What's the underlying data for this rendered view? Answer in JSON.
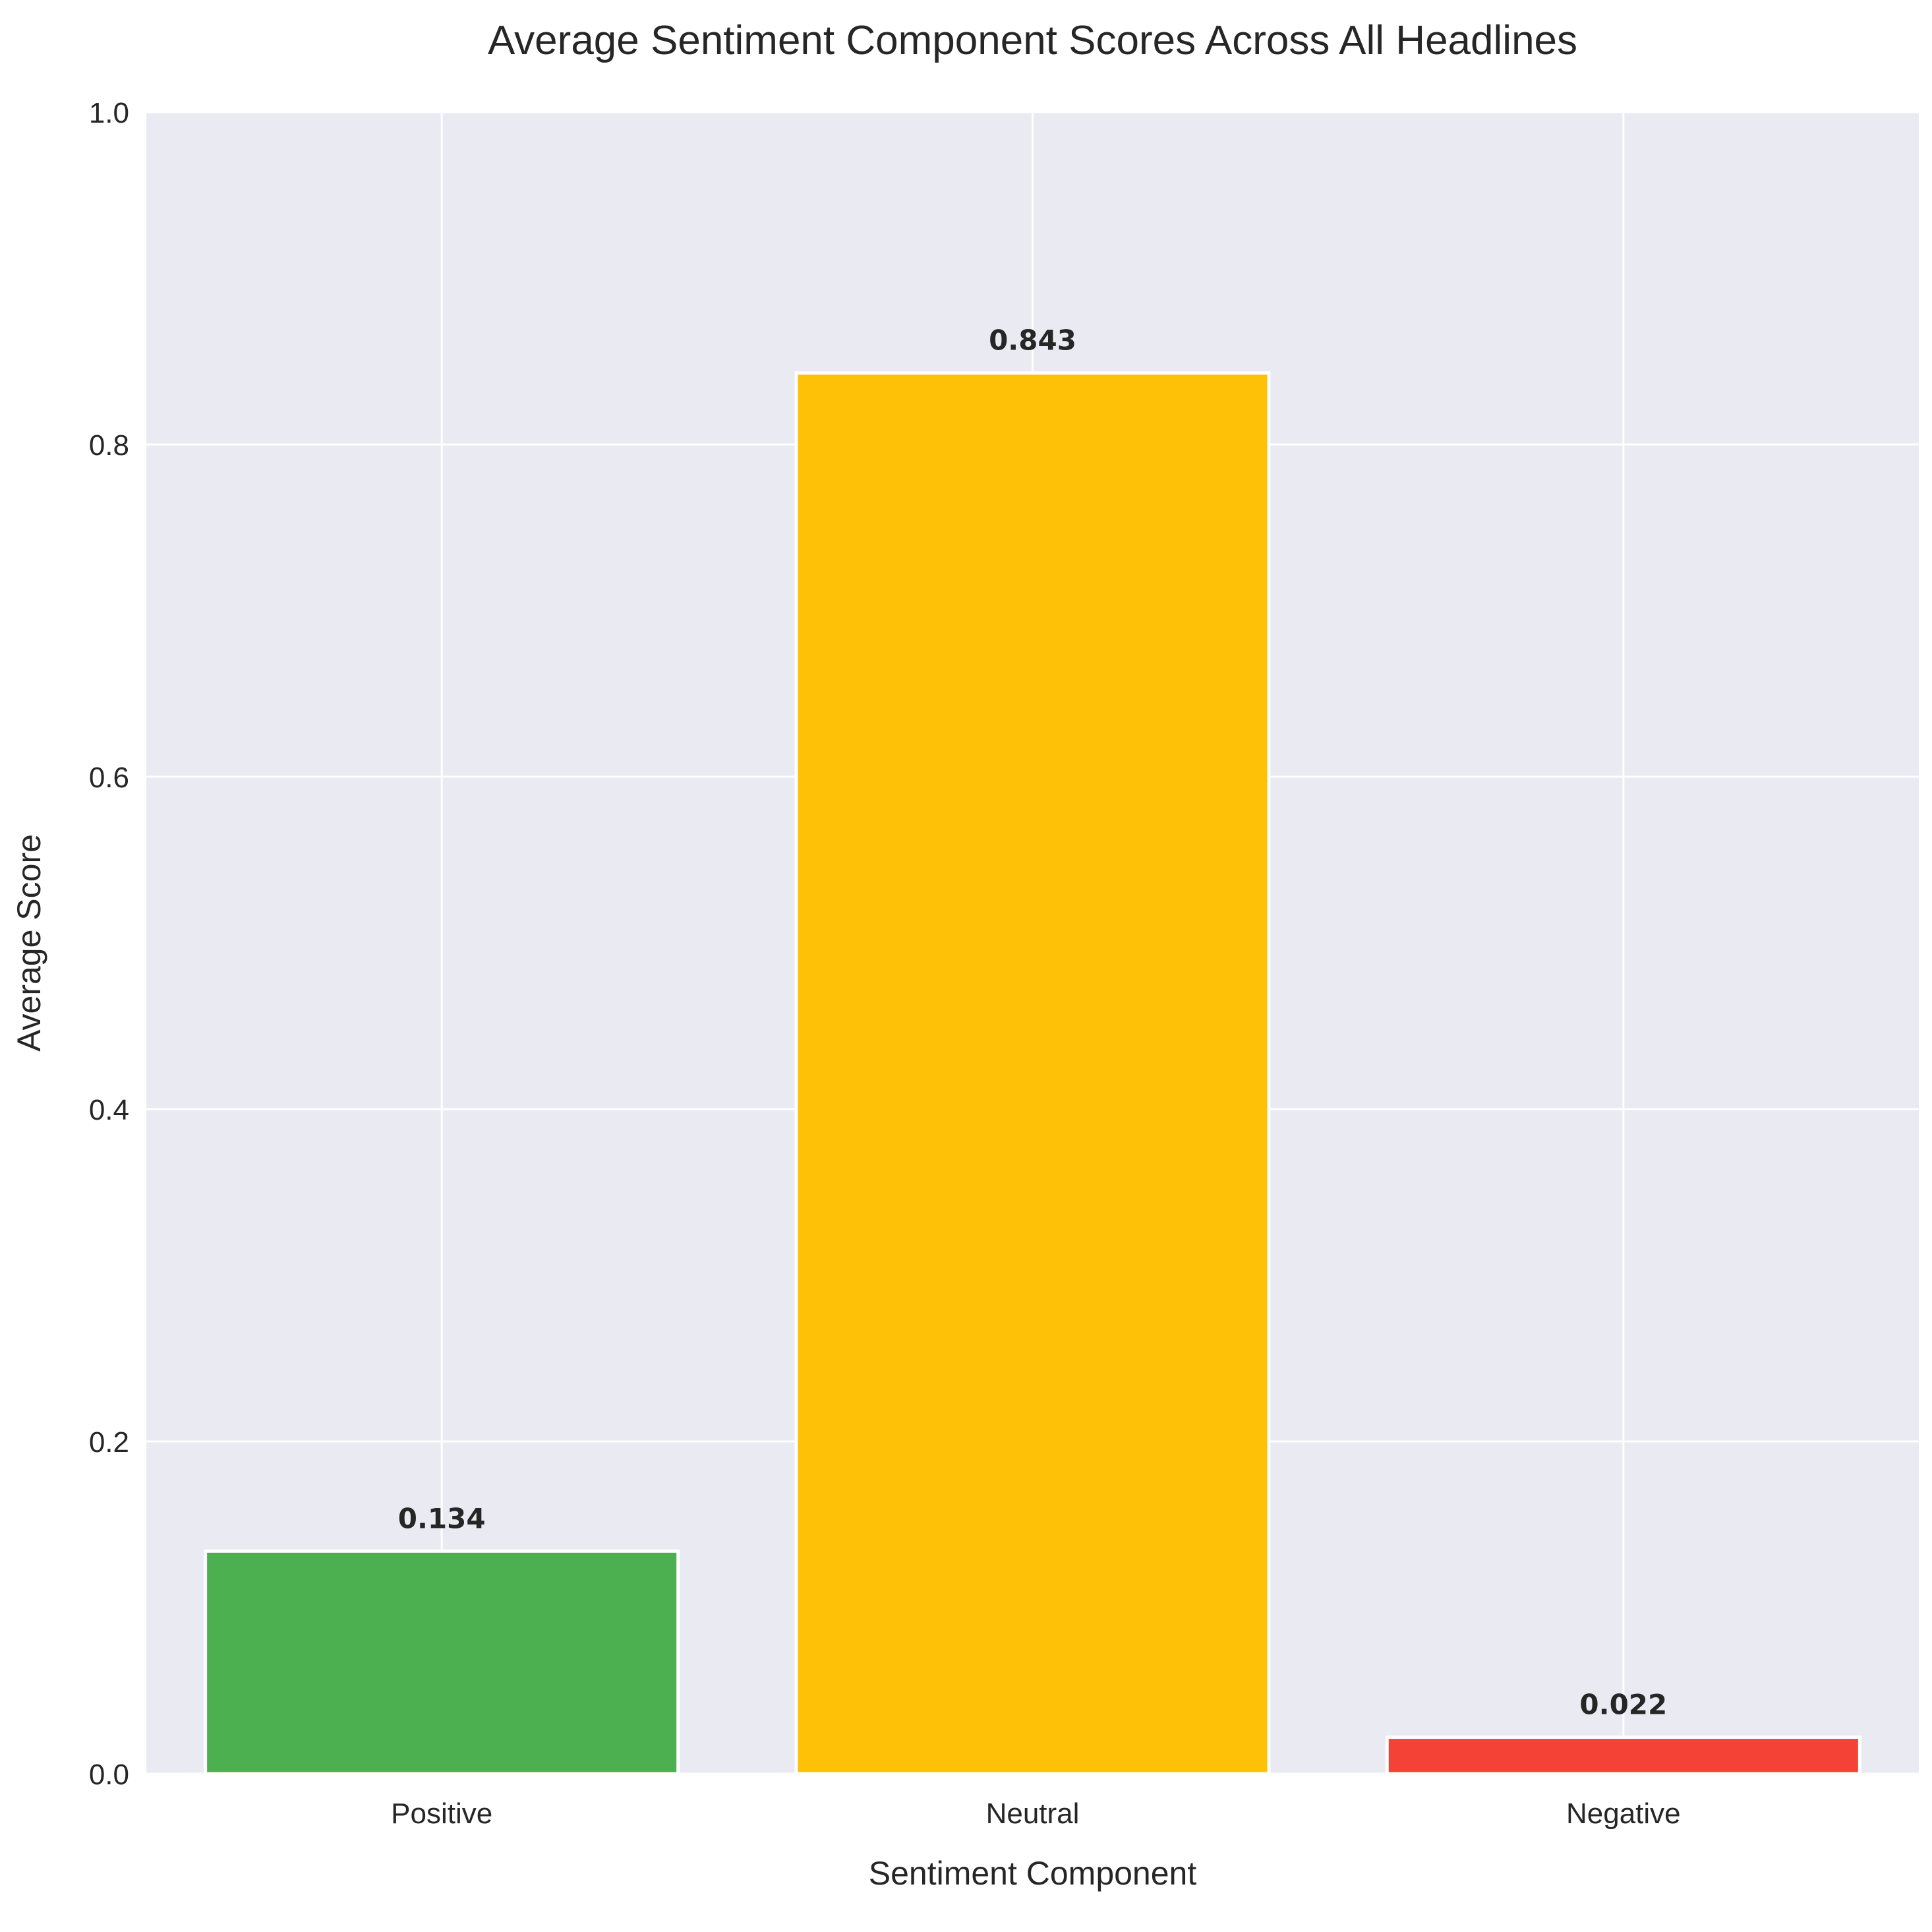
{
  "chart_data": {
    "type": "bar",
    "title": "Average Sentiment Component Scores Across All Headlines",
    "xlabel": "Sentiment Component",
    "ylabel": "Average Score",
    "categories": [
      "Positive",
      "Neutral",
      "Negative"
    ],
    "values": [
      0.134,
      0.843,
      0.022
    ],
    "value_labels": [
      "0.134",
      "0.843",
      "0.022"
    ],
    "colors": [
      "#4caf50",
      "#ffc107",
      "#f44336"
    ],
    "ylim": [
      0,
      1.0
    ],
    "yticks": [
      0.0,
      0.2,
      0.4,
      0.6,
      0.8,
      1.0
    ],
    "ytick_labels": [
      "0.0",
      "0.2",
      "0.4",
      "0.6",
      "0.8",
      "1.0"
    ],
    "grid": true,
    "background": "#eaeaf2",
    "grid_color": "#ffffff"
  }
}
